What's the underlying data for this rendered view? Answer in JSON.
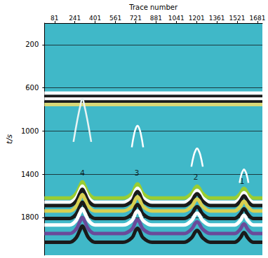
{
  "chart_data": {
    "type": "line",
    "xlabel": "Trace number",
    "ylabel": "t/s",
    "xlim": [
      1,
      1720
    ],
    "xticks": [
      81,
      241,
      401,
      561,
      721,
      881,
      1041,
      1201,
      1361,
      1521,
      1681
    ],
    "ylim": [
      0,
      2150
    ],
    "yticks": [
      200,
      600,
      1000,
      1400,
      1800
    ],
    "grid": true,
    "series": [
      {
        "color": "#ffffff",
        "x": [
          1,
          1720
        ],
        "values": [
          650,
          650
        ]
      },
      {
        "color": "#1a1a1a",
        "x": [
          1,
          1720
        ],
        "values": [
          680,
          680
        ]
      },
      {
        "color": "#ffffff",
        "x": [
          1,
          1720
        ],
        "values": [
          705,
          705
        ]
      },
      {
        "color": "#1a1a1a",
        "x": [
          1,
          1720
        ],
        "values": [
          730,
          730
        ]
      },
      {
        "color": "#d8d878",
        "x": [
          1,
          1720
        ],
        "values": [
          755,
          755
        ]
      },
      {
        "color": "#e8f4f4",
        "x": [
          230,
          260,
          285,
          300,
          315,
          340,
          370
        ],
        "values": [
          1100,
          900,
          760,
          700,
          760,
          900,
          1100
        ]
      },
      {
        "color": "#ffffff",
        "x": [
          690,
          710,
          725,
          735,
          745,
          760,
          780
        ],
        "values": [
          1150,
          1020,
          965,
          950,
          965,
          1020,
          1150
        ]
      },
      {
        "color": "#ffffff",
        "x": [
          1160,
          1180,
          1195,
          1205,
          1215,
          1230,
          1250
        ],
        "values": [
          1330,
          1220,
          1175,
          1160,
          1175,
          1220,
          1330
        ]
      },
      {
        "color": "#ffffff",
        "x": [
          1540,
          1555,
          1568,
          1575,
          1582,
          1595,
          1610
        ],
        "values": [
          1480,
          1400,
          1365,
          1355,
          1365,
          1400,
          1480
        ]
      },
      {
        "color": "#9acd32",
        "x": [
          1,
          200,
          250,
          280,
          300,
          320,
          350,
          400,
          620,
          690,
          720,
          735,
          750,
          780,
          850,
          1100,
          1160,
          1190,
          1205,
          1220,
          1250,
          1310,
          1500,
          1545,
          1565,
          1575,
          1585,
          1605,
          1650,
          1720
        ],
        "values": [
          1620,
          1620,
          1580,
          1510,
          1470,
          1510,
          1580,
          1620,
          1620,
          1580,
          1510,
          1490,
          1510,
          1580,
          1620,
          1620,
          1580,
          1525,
          1510,
          1525,
          1580,
          1620,
          1620,
          1580,
          1540,
          1530,
          1540,
          1580,
          1620,
          1620
        ]
      },
      {
        "color": "#ffffff",
        "x": [
          1,
          200,
          250,
          280,
          300,
          320,
          350,
          400,
          620,
          690,
          720,
          735,
          750,
          780,
          850,
          1100,
          1160,
          1190,
          1205,
          1220,
          1250,
          1310,
          1500,
          1545,
          1565,
          1575,
          1585,
          1605,
          1650,
          1720
        ],
        "values": [
          1660,
          1660,
          1620,
          1550,
          1510,
          1550,
          1620,
          1660,
          1660,
          1620,
          1550,
          1530,
          1550,
          1620,
          1660,
          1660,
          1620,
          1565,
          1550,
          1565,
          1620,
          1660,
          1660,
          1620,
          1580,
          1570,
          1580,
          1620,
          1660,
          1660
        ]
      },
      {
        "color": "#1a1a1a",
        "x": [
          1,
          200,
          250,
          280,
          300,
          320,
          350,
          400,
          620,
          690,
          720,
          735,
          750,
          780,
          850,
          1100,
          1160,
          1190,
          1205,
          1220,
          1250,
          1310,
          1500,
          1545,
          1565,
          1575,
          1585,
          1605,
          1650,
          1720
        ],
        "values": [
          1690,
          1690,
          1650,
          1580,
          1540,
          1580,
          1650,
          1690,
          1690,
          1650,
          1580,
          1560,
          1580,
          1650,
          1690,
          1690,
          1650,
          1595,
          1580,
          1595,
          1650,
          1690,
          1690,
          1650,
          1610,
          1600,
          1610,
          1650,
          1690,
          1690
        ]
      },
      {
        "color": "#d8d050",
        "x": [
          1,
          200,
          250,
          280,
          300,
          320,
          350,
          400,
          620,
          690,
          720,
          735,
          750,
          780,
          850,
          1100,
          1160,
          1190,
          1205,
          1220,
          1250,
          1310,
          1500,
          1545,
          1565,
          1575,
          1585,
          1605,
          1650,
          1720
        ],
        "values": [
          1740,
          1740,
          1700,
          1630,
          1590,
          1630,
          1700,
          1740,
          1740,
          1700,
          1630,
          1610,
          1630,
          1700,
          1740,
          1740,
          1700,
          1645,
          1630,
          1645,
          1700,
          1740,
          1740,
          1700,
          1660,
          1650,
          1660,
          1700,
          1740,
          1740
        ]
      },
      {
        "color": "#1a1a1a",
        "x": [
          1,
          200,
          250,
          280,
          300,
          320,
          350,
          400,
          620,
          690,
          720,
          735,
          750,
          780,
          850,
          1100,
          1160,
          1190,
          1205,
          1220,
          1250,
          1310,
          1500,
          1545,
          1565,
          1575,
          1585,
          1605,
          1650,
          1720
        ],
        "values": [
          1810,
          1810,
          1770,
          1700,
          1660,
          1700,
          1770,
          1810,
          1810,
          1770,
          1700,
          1680,
          1700,
          1770,
          1810,
          1810,
          1770,
          1715,
          1700,
          1715,
          1770,
          1810,
          1810,
          1770,
          1730,
          1720,
          1730,
          1770,
          1810,
          1810
        ]
      },
      {
        "color": "#ffffff",
        "x": [
          1,
          200,
          250,
          280,
          300,
          320,
          350,
          400,
          620,
          690,
          720,
          735,
          750,
          780,
          850,
          1100,
          1160,
          1190,
          1205,
          1220,
          1250,
          1310,
          1500,
          1545,
          1565,
          1575,
          1585,
          1605,
          1650,
          1720
        ],
        "values": [
          1870,
          1870,
          1830,
          1760,
          1720,
          1760,
          1830,
          1870,
          1870,
          1830,
          1760,
          1740,
          1760,
          1830,
          1870,
          1870,
          1830,
          1775,
          1760,
          1775,
          1830,
          1870,
          1870,
          1830,
          1790,
          1780,
          1790,
          1830,
          1870,
          1870
        ]
      },
      {
        "color": "#6a4a9a",
        "x": [
          1,
          200,
          250,
          280,
          300,
          320,
          350,
          400,
          620,
          690,
          720,
          735,
          750,
          780,
          850,
          1100,
          1160,
          1190,
          1205,
          1220,
          1250,
          1310,
          1500,
          1545,
          1565,
          1575,
          1585,
          1605,
          1650,
          1720
        ],
        "values": [
          1950,
          1950,
          1910,
          1840,
          1800,
          1840,
          1910,
          1950,
          1950,
          1910,
          1840,
          1820,
          1840,
          1910,
          1950,
          1950,
          1910,
          1855,
          1840,
          1855,
          1910,
          1950,
          1950,
          1910,
          1870,
          1860,
          1870,
          1910,
          1950,
          1950
        ]
      },
      {
        "color": "#1a1a1a",
        "x": [
          1,
          200,
          250,
          280,
          300,
          320,
          350,
          400,
          620,
          690,
          720,
          735,
          750,
          780,
          850,
          1100,
          1160,
          1190,
          1205,
          1220,
          1250,
          1310,
          1500,
          1545,
          1565,
          1575,
          1585,
          1605,
          1650,
          1720
        ],
        "values": [
          2030,
          2030,
          1990,
          1920,
          1880,
          1920,
          1990,
          2030,
          2030,
          1990,
          1920,
          1900,
          1920,
          1990,
          2030,
          2030,
          1990,
          1935,
          1920,
          1935,
          1990,
          2030,
          2030,
          1990,
          1950,
          1940,
          1950,
          1990,
          2030,
          2030
        ]
      }
    ],
    "annotations": [
      {
        "text": "4",
        "x": 300,
        "y": 1390
      },
      {
        "text": "3",
        "x": 730,
        "y": 1390
      },
      {
        "text": "2",
        "x": 1195,
        "y": 1430
      },
      {
        "text": "1",
        "x": 1560,
        "y": 1470
      }
    ]
  }
}
